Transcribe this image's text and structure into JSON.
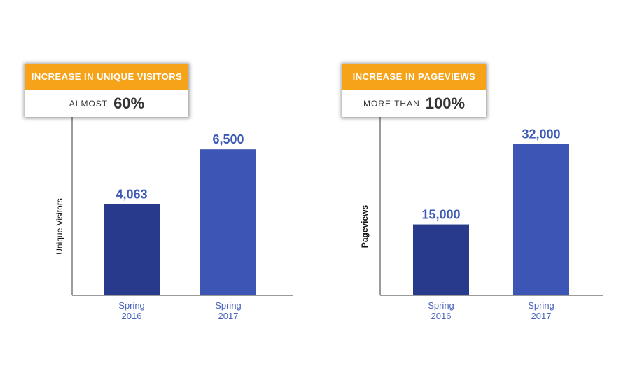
{
  "colors": {
    "bar_2016": "#273a8c",
    "bar_2017": "#3d55b4",
    "value_label": "#3c59b6",
    "category_label": "#4a63bd",
    "axis": "#7a7a7a",
    "callout_header": "#f6a31a"
  },
  "panels": [
    {
      "callout": {
        "header": "INCREASE IN UNIQUE VISITORS",
        "prefix": "ALMOST",
        "value": "60%"
      }
    },
    {
      "callout": {
        "header": "INCREASE IN PAGEVIEWS",
        "prefix": "MORE THAN",
        "value": "100%"
      }
    }
  ],
  "chart_data": [
    {
      "type": "bar",
      "categories": [
        "Spring 2016",
        "Spring 2017"
      ],
      "category_lines": [
        [
          "Spring",
          "2016"
        ],
        [
          "Spring",
          "2017"
        ]
      ],
      "values": [
        4063,
        6500
      ],
      "data_labels": [
        "4,063",
        "6,500"
      ],
      "title": "",
      "xlabel": "",
      "ylabel": "Unique Visitors",
      "ylim": [
        0,
        8000
      ],
      "grid": false
    },
    {
      "type": "bar",
      "categories": [
        "Spring 2016",
        "Spring 2017"
      ],
      "category_lines": [
        [
          "Spring",
          "2016"
        ],
        [
          "Spring",
          "2017"
        ]
      ],
      "values": [
        15000,
        32000
      ],
      "data_labels": [
        "15,000",
        "32,000"
      ],
      "title": "",
      "xlabel": "",
      "ylabel": "Pageviews",
      "ylim": [
        0,
        38000
      ],
      "grid": false
    }
  ]
}
